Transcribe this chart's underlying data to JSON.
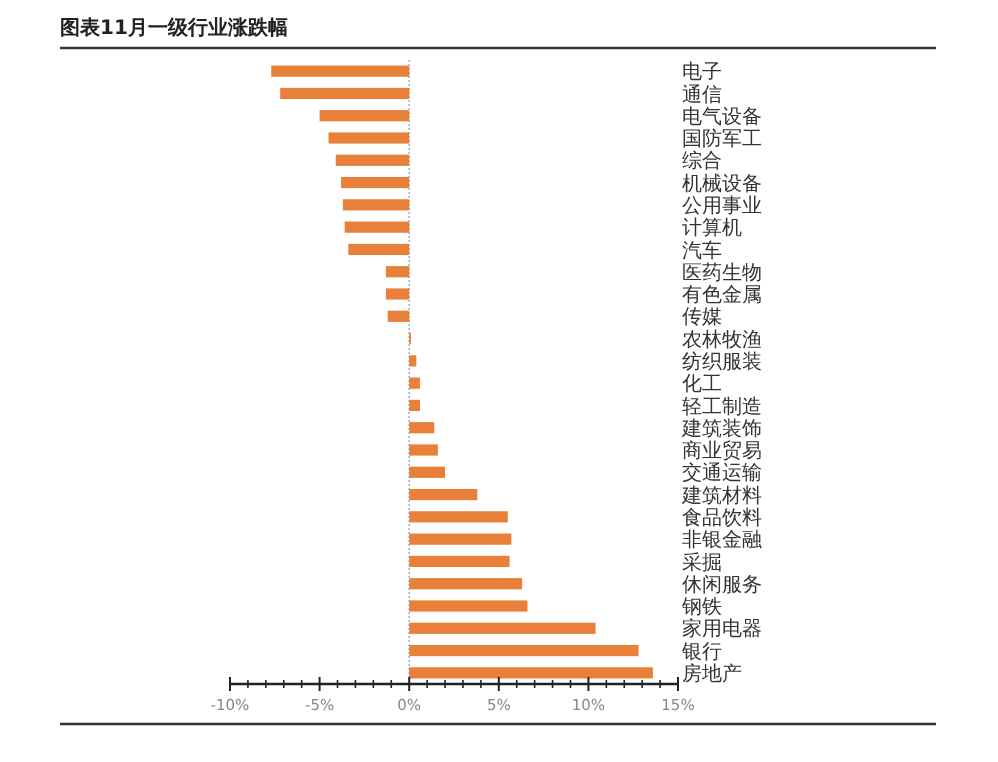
{
  "chart_data": {
    "type": "bar",
    "orientation": "horizontal",
    "title": "图表11月一级行业涨跌幅",
    "categories": [
      "电子",
      "通信",
      "电气设备",
      "国防军工",
      "综合",
      "机械设备",
      "公用事业",
      "计算机",
      "汽车",
      "医药生物",
      "有色金属",
      "传媒",
      "农林牧渔",
      "纺织服装",
      "化工",
      "轻工制造",
      "建筑装饰",
      "商业贸易",
      "交通运输",
      "建筑材料",
      "食品饮料",
      "非银金融",
      "采掘",
      "休闲服务",
      "钢铁",
      "家用电器",
      "银行",
      "房地产"
    ],
    "values": [
      -7.7,
      -7.2,
      -5.0,
      -4.5,
      -4.1,
      -3.8,
      -3.7,
      -3.6,
      -3.4,
      -1.3,
      -1.3,
      -1.2,
      0.1,
      0.4,
      0.6,
      0.6,
      1.4,
      1.6,
      2.0,
      3.8,
      5.5,
      5.7,
      5.6,
      6.3,
      6.6,
      10.4,
      12.8,
      13.6
    ],
    "color": "#e8803a",
    "xlim": [
      -10,
      15
    ],
    "xticks": [
      {
        "value": -10,
        "label": "-10%"
      },
      {
        "value": -5,
        "label": "-5%"
      },
      {
        "value": 0,
        "label": "0%"
      },
      {
        "value": 5,
        "label": "5%"
      },
      {
        "value": 10,
        "label": "10%"
      },
      {
        "value": 15,
        "label": "15%"
      }
    ],
    "ref_lines": [
      {
        "axis": "x",
        "value": 0,
        "color": "#9fb6c8",
        "line_style": "dotted"
      }
    ]
  }
}
